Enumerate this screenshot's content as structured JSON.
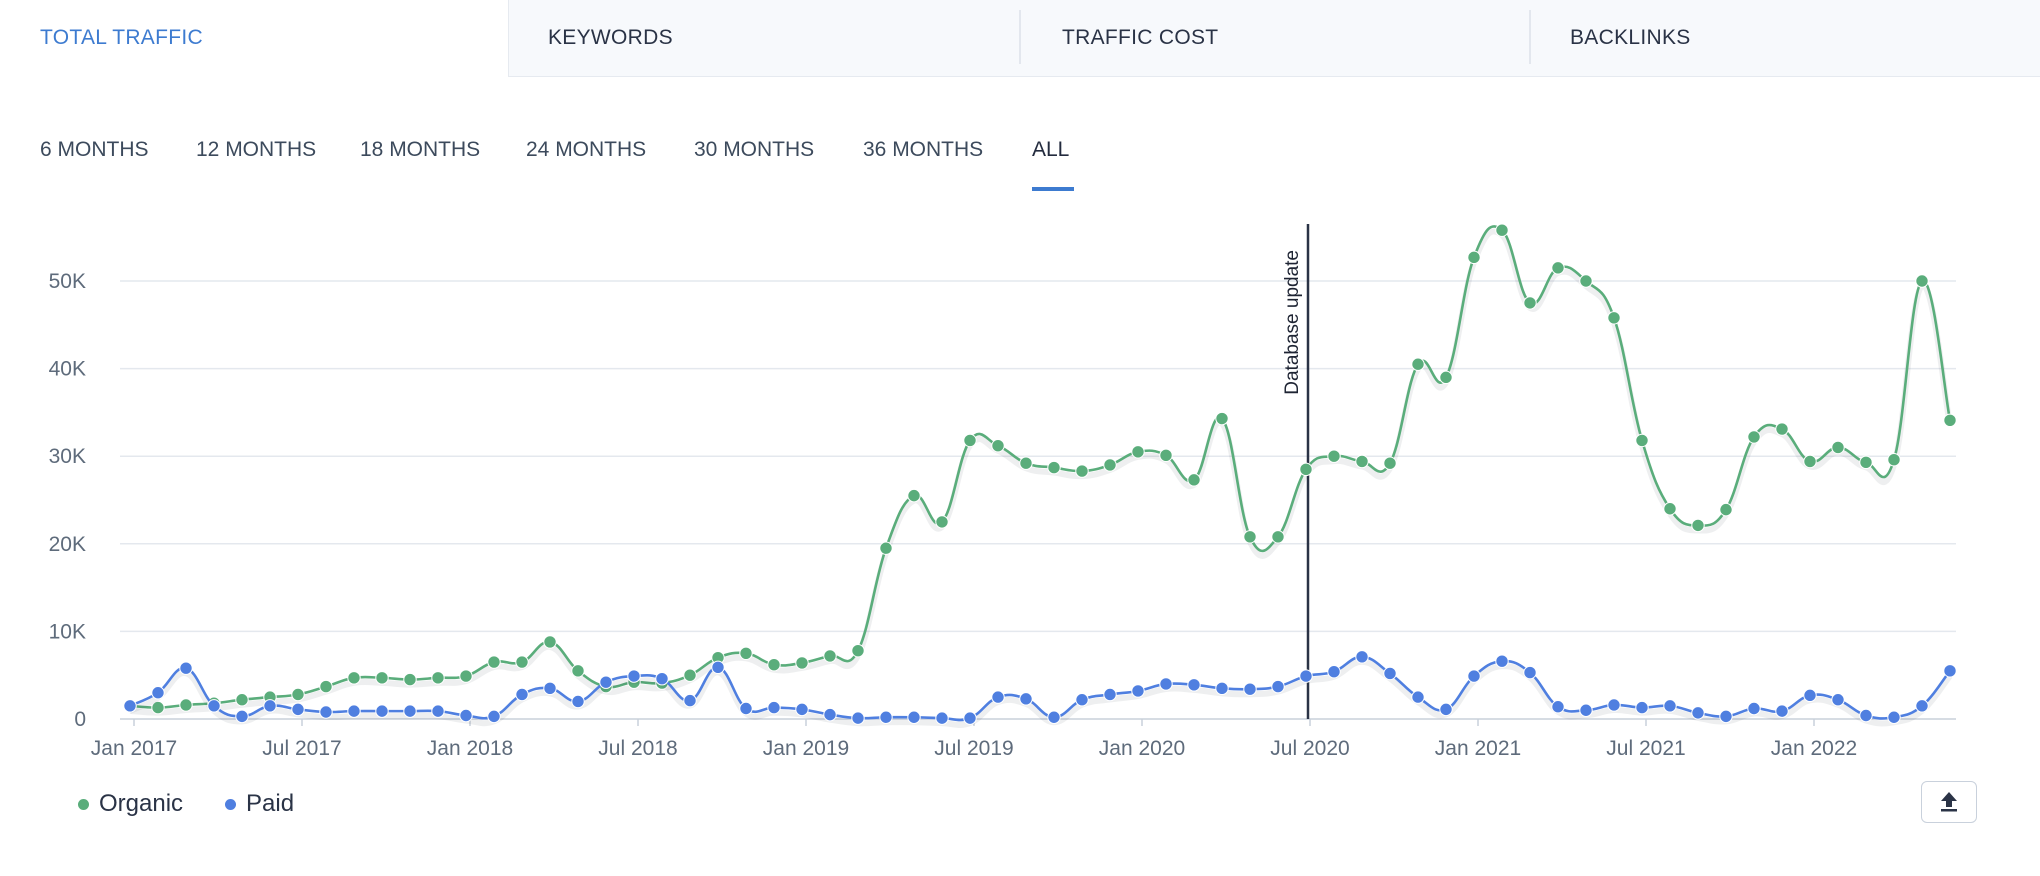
{
  "tabs": [
    {
      "label": "TOTAL TRAFFIC",
      "active": true
    },
    {
      "label": "KEYWORDS",
      "active": false
    },
    {
      "label": "TRAFFIC COST",
      "active": false
    },
    {
      "label": "BACKLINKS",
      "active": false
    }
  ],
  "periods": [
    "6 MONTHS",
    "12 MONTHS",
    "18 MONTHS",
    "24 MONTHS",
    "30 MONTHS",
    "36 MONTHS",
    "ALL"
  ],
  "active_period": "ALL",
  "colors": {
    "organic": "#5aad7b",
    "paid": "#4f7fe0",
    "accent": "#3d7bd0",
    "marker": "#2a3346"
  },
  "legend": [
    {
      "name": "Organic",
      "color": "#5aad7b"
    },
    {
      "name": "Paid",
      "color": "#4f7fe0"
    }
  ],
  "export_icon": "upload-icon",
  "chart_data": {
    "type": "line",
    "x_start": "Jan 2017",
    "x_step": "month",
    "x_tick_labels": [
      "Jan 2017",
      "Jul 2017",
      "Jan 2018",
      "Jul 2018",
      "Jan 2019",
      "Jul 2019",
      "Jan 2020",
      "Jul 2020",
      "Jan 2021",
      "Jul 2021",
      "Jan 2022"
    ],
    "y_tick_labels": [
      "0",
      "10K",
      "20K",
      "30K",
      "40K",
      "50K"
    ],
    "ylim": [
      0,
      55000
    ],
    "grid": true,
    "legend_position": "bottom-left",
    "annotation": {
      "label": "Database update",
      "x": "Jul 2020"
    },
    "series": [
      {
        "name": "Organic",
        "values": [
          1500,
          1300,
          1600,
          1800,
          2200,
          2500,
          2800,
          3700,
          4700,
          4700,
          4500,
          4700,
          4900,
          6500,
          6500,
          8800,
          5500,
          3700,
          4200,
          4100,
          5000,
          7000,
          7500,
          6200,
          6400,
          7200,
          7800,
          19500,
          25500,
          22500,
          31800,
          31200,
          29200,
          28700,
          28300,
          29000,
          30500,
          30100,
          27300,
          34300,
          20800,
          20800,
          28500,
          30000,
          29400,
          29200,
          40500,
          39000,
          52700,
          55800,
          47500,
          51500,
          50000,
          45800,
          31800,
          24000,
          22100,
          23900,
          32200,
          33100,
          29400,
          31000,
          29300,
          29600,
          50000,
          34100
        ]
      },
      {
        "name": "Paid",
        "values": [
          1500,
          3000,
          5800,
          1500,
          300,
          1500,
          1100,
          800,
          900,
          900,
          900,
          900,
          400,
          300,
          2800,
          3500,
          2000,
          4200,
          4900,
          4600,
          2100,
          5900,
          1200,
          1300,
          1100,
          500,
          100,
          200,
          200,
          100,
          100,
          2500,
          2300,
          200,
          2200,
          2800,
          3200,
          4000,
          3900,
          3500,
          3400,
          3700,
          4900,
          5400,
          7100,
          5200,
          2500,
          1100,
          4900,
          6600,
          5300,
          1400,
          1000,
          1600,
          1300,
          1500,
          700,
          300,
          1200,
          900,
          2700,
          2200,
          400,
          200,
          1500,
          5500
        ]
      }
    ]
  }
}
